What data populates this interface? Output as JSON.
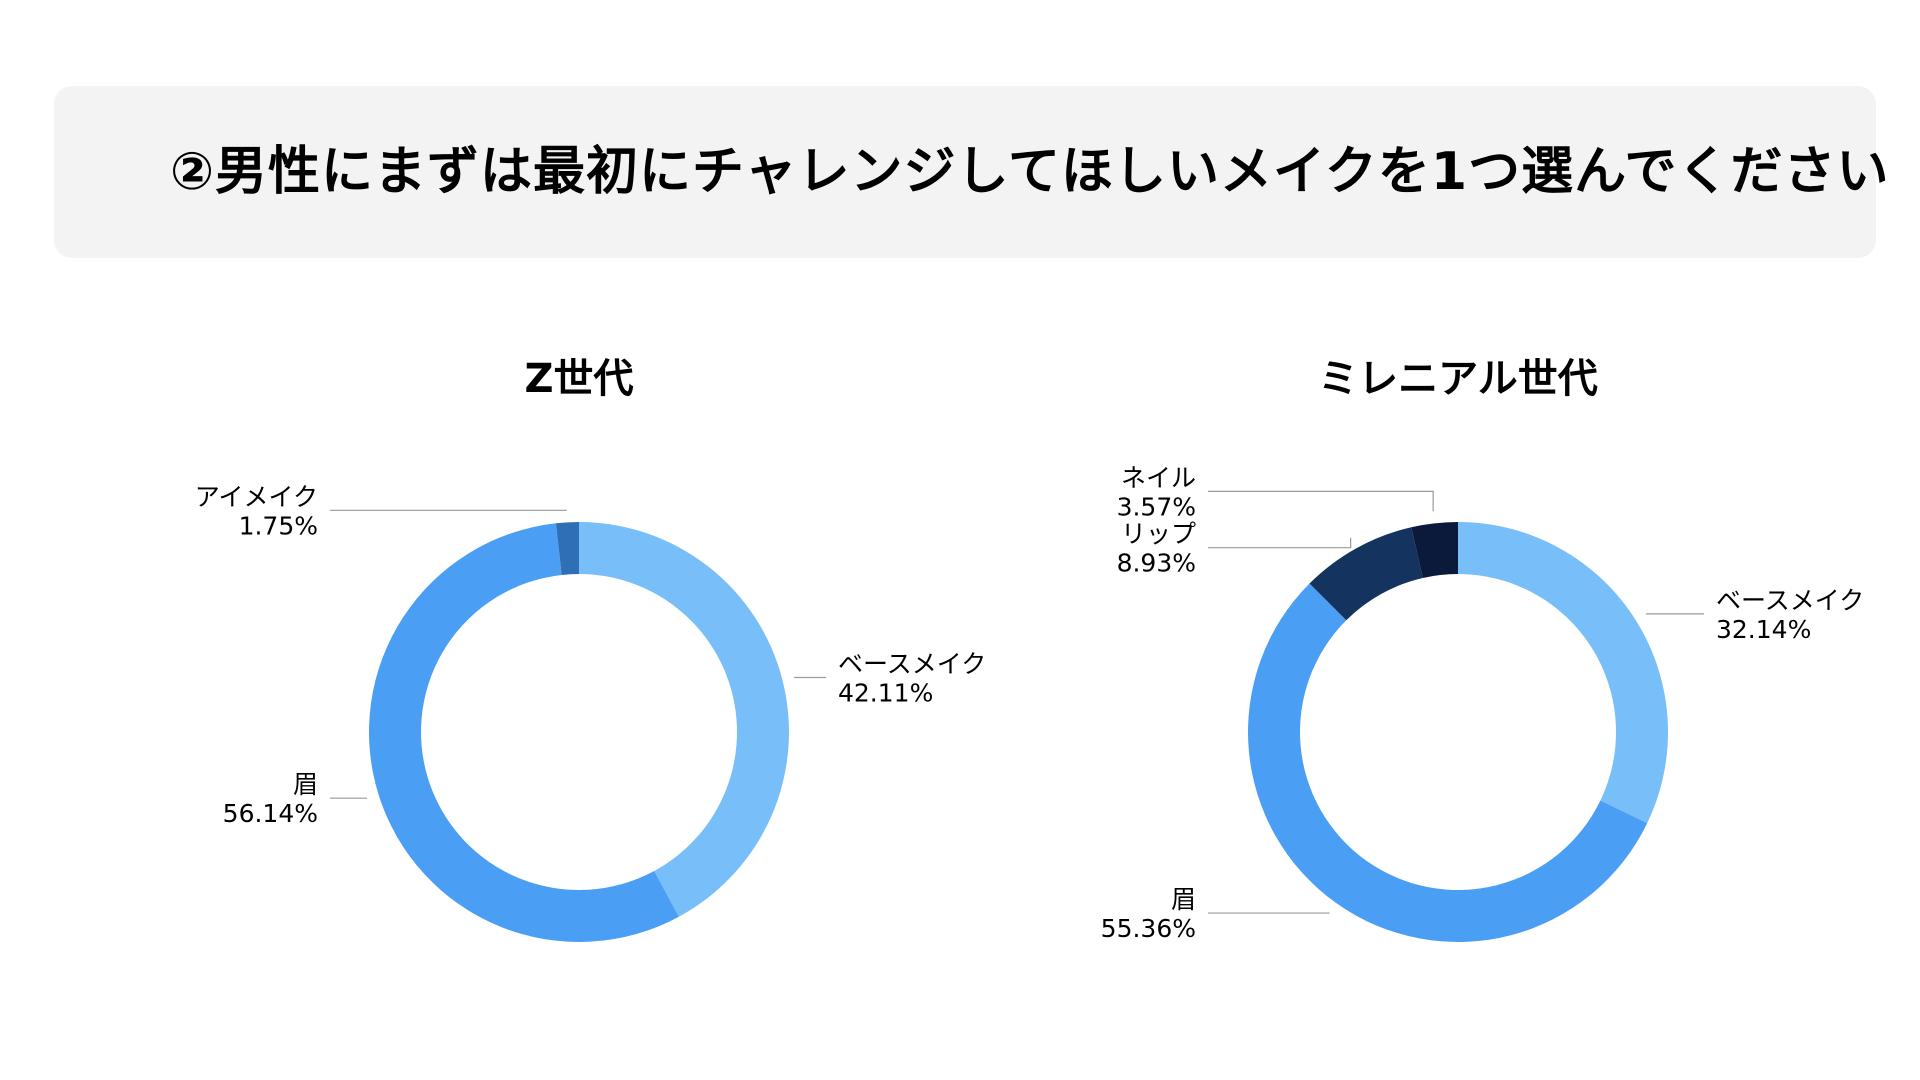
{
  "page": {
    "title": "②男性にまずは最初にチャレンジしてほしいメイクを1つ選んでください"
  },
  "chart_data": [
    {
      "type": "pie",
      "variant": "donut",
      "title": "Z世代",
      "categories": [
        "ベースメイク",
        "眉",
        "アイメイク"
      ],
      "values": [
        42.11,
        56.14,
        1.75
      ],
      "value_labels": [
        "42.11%",
        "56.14%",
        "1.75%"
      ],
      "colors": [
        "#78bef8",
        "#4a9ff5",
        "#2e6fb5"
      ],
      "start": "12 o'clock",
      "direction": "clockwise",
      "label_sides": [
        "right",
        "left",
        "left"
      ]
    },
    {
      "type": "pie",
      "variant": "donut",
      "title": "ミレニアル世代",
      "categories": [
        "ベースメイク",
        "眉",
        "リップ",
        "ネイル"
      ],
      "values": [
        32.14,
        55.36,
        8.93,
        3.57
      ],
      "value_labels": [
        "32.14%",
        "55.36%",
        "8.93%",
        "3.57%"
      ],
      "colors": [
        "#78bef8",
        "#4a9ff5",
        "#14335e",
        "#0b1a3a"
      ],
      "start": "12 o'clock",
      "direction": "clockwise",
      "label_sides": [
        "right",
        "left",
        "left",
        "left"
      ]
    }
  ]
}
